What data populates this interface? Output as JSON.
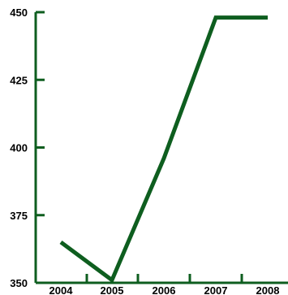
{
  "chart_data": {
    "type": "line",
    "x": [
      "2004",
      "2005",
      "2006",
      "2007",
      "2008"
    ],
    "series": [
      {
        "points": [
          {
            "x": "2004",
            "y": 365
          },
          {
            "x": "2005",
            "y": 351
          },
          {
            "x": "2006",
            "y": 396
          },
          {
            "x": "2007",
            "y": 448
          },
          {
            "x": "2008",
            "y": 448
          }
        ]
      }
    ],
    "ylim": [
      350,
      450
    ],
    "y_ticks": [
      "350",
      "375",
      "400",
      "425",
      "450"
    ],
    "x_ticks": [
      "2004",
      "2005",
      "2006",
      "2007",
      "2008"
    ],
    "grid": false,
    "line_color": "#0e5e1f",
    "axis_color": "#0e5e1f"
  }
}
